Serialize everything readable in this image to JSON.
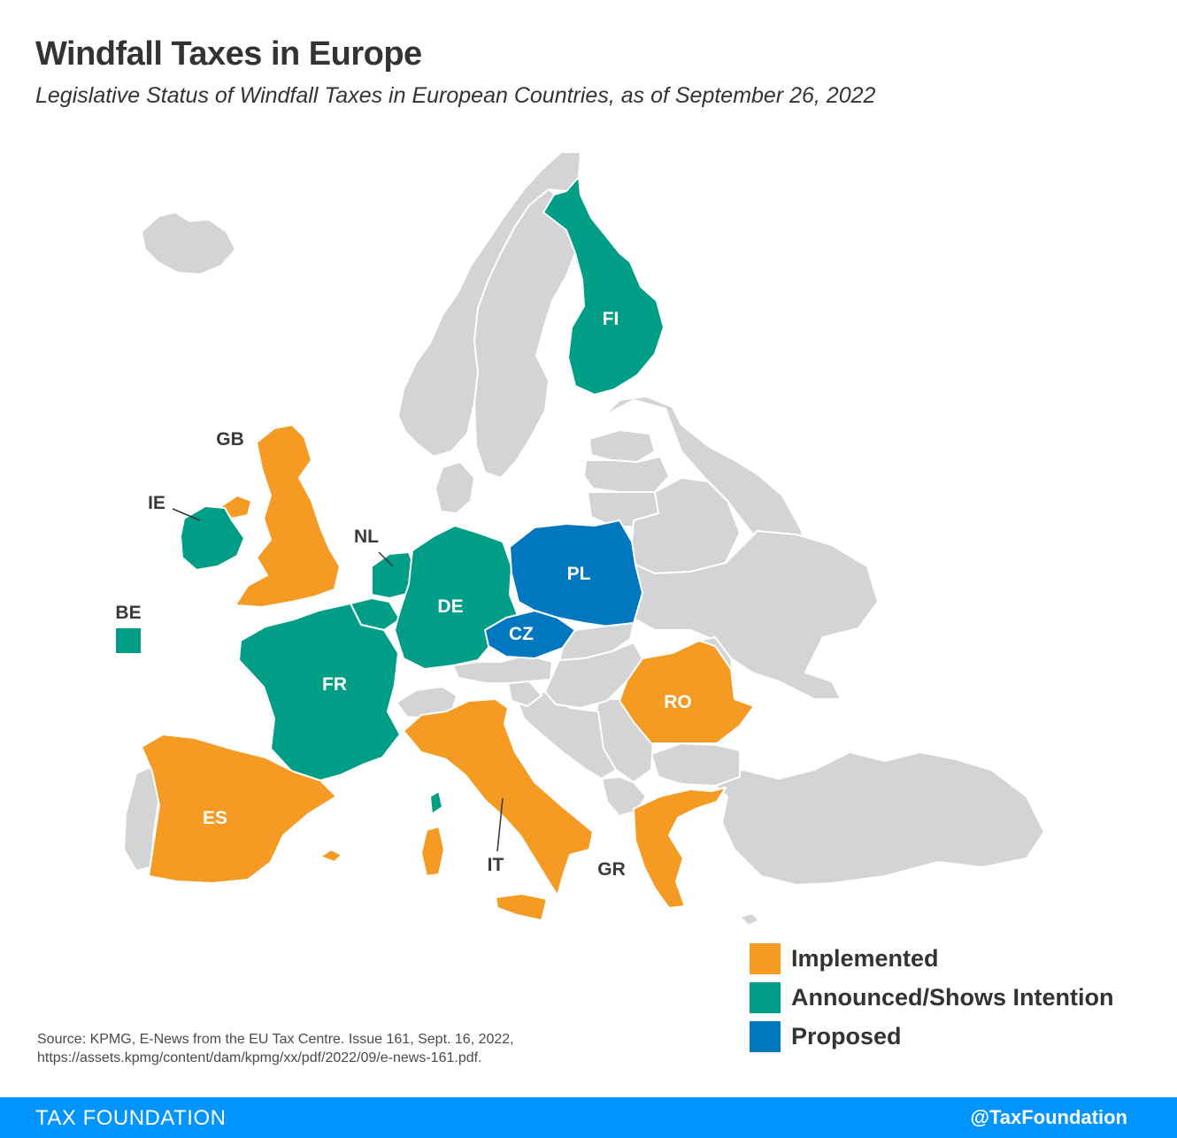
{
  "header": {
    "title": "Windfall Taxes in Europe",
    "subtitle": "Legislative Status of Windfall Taxes in European Countries, as of September 26, 2022"
  },
  "colors": {
    "implemented": "#f59a23",
    "announced": "#009e87",
    "proposed": "#0077be",
    "other": "#d3d4d6",
    "footer": "#0094ff"
  },
  "legend": [
    {
      "label": "Implemented",
      "status": "implemented"
    },
    {
      "label": "Announced/Shows Intention",
      "status": "announced"
    },
    {
      "label": "Proposed",
      "status": "proposed"
    }
  ],
  "countries": [
    {
      "code": "FI",
      "status": "announced"
    },
    {
      "code": "GB",
      "status": "implemented"
    },
    {
      "code": "IE",
      "status": "announced"
    },
    {
      "code": "NL",
      "status": "announced"
    },
    {
      "code": "BE",
      "status": "announced"
    },
    {
      "code": "DE",
      "status": "announced"
    },
    {
      "code": "FR",
      "status": "announced"
    },
    {
      "code": "PL",
      "status": "proposed"
    },
    {
      "code": "CZ",
      "status": "proposed"
    },
    {
      "code": "RO",
      "status": "implemented"
    },
    {
      "code": "ES",
      "status": "implemented"
    },
    {
      "code": "IT",
      "status": "implemented"
    },
    {
      "code": "GR",
      "status": "implemented"
    }
  ],
  "source": {
    "line1": "Source: KPMG, E-News from the EU Tax Centre. Issue 161, Sept. 16, 2022,",
    "line2": "https://assets.kpmg/content/dam/kpmg/xx/pdf/2022/09/e-news-161.pdf."
  },
  "footer": {
    "left": "TAX FOUNDATION",
    "right": "@TaxFoundation"
  }
}
